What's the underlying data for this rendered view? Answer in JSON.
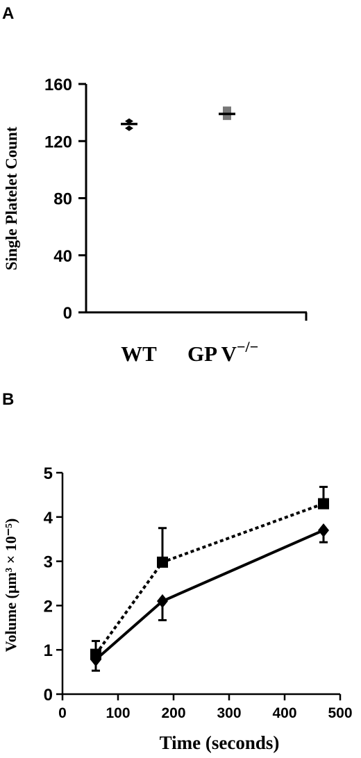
{
  "chart_data": [
    {
      "panel": "A",
      "type": "scatter",
      "ylabel": "Single Platelet Count",
      "ylim": [
        0,
        160
      ],
      "yticks": [
        "0",
        "40",
        "80",
        "120",
        "160"
      ],
      "categories": [
        {
          "label": "WT",
          "label_sup": ""
        },
        {
          "label": "GP V",
          "label_sup": "−/−"
        }
      ],
      "series": [
        {
          "category": "WT",
          "mean": 132,
          "points": [
            129,
            134
          ],
          "marker": "diamond"
        },
        {
          "category": "GP V",
          "mean": 139,
          "points": [
            136,
            137,
            138,
            141,
            143
          ],
          "marker": "square"
        }
      ]
    },
    {
      "panel": "B",
      "type": "line",
      "xlabel": "Time (seconds)",
      "ylabel": "Volume (μm³ × 10⁻⁵)",
      "xlim": [
        0,
        500
      ],
      "ylim": [
        0,
        5
      ],
      "xticks": [
        "0",
        "100",
        "200",
        "300",
        "400",
        "500"
      ],
      "yticks": [
        "0",
        "1",
        "2",
        "3",
        "4",
        "5"
      ],
      "series": [
        {
          "marker": "square",
          "line": "dotted",
          "x": [
            60,
            180,
            470
          ],
          "y": [
            0.9,
            2.98,
            4.3
          ],
          "err": [
            0.3,
            0.77,
            0.38
          ]
        },
        {
          "marker": "diamond",
          "line": "solid",
          "x": [
            60,
            180,
            470
          ],
          "y": [
            0.78,
            2.1,
            3.7
          ],
          "err": [
            0.25,
            0.43,
            0.27
          ]
        }
      ]
    }
  ]
}
